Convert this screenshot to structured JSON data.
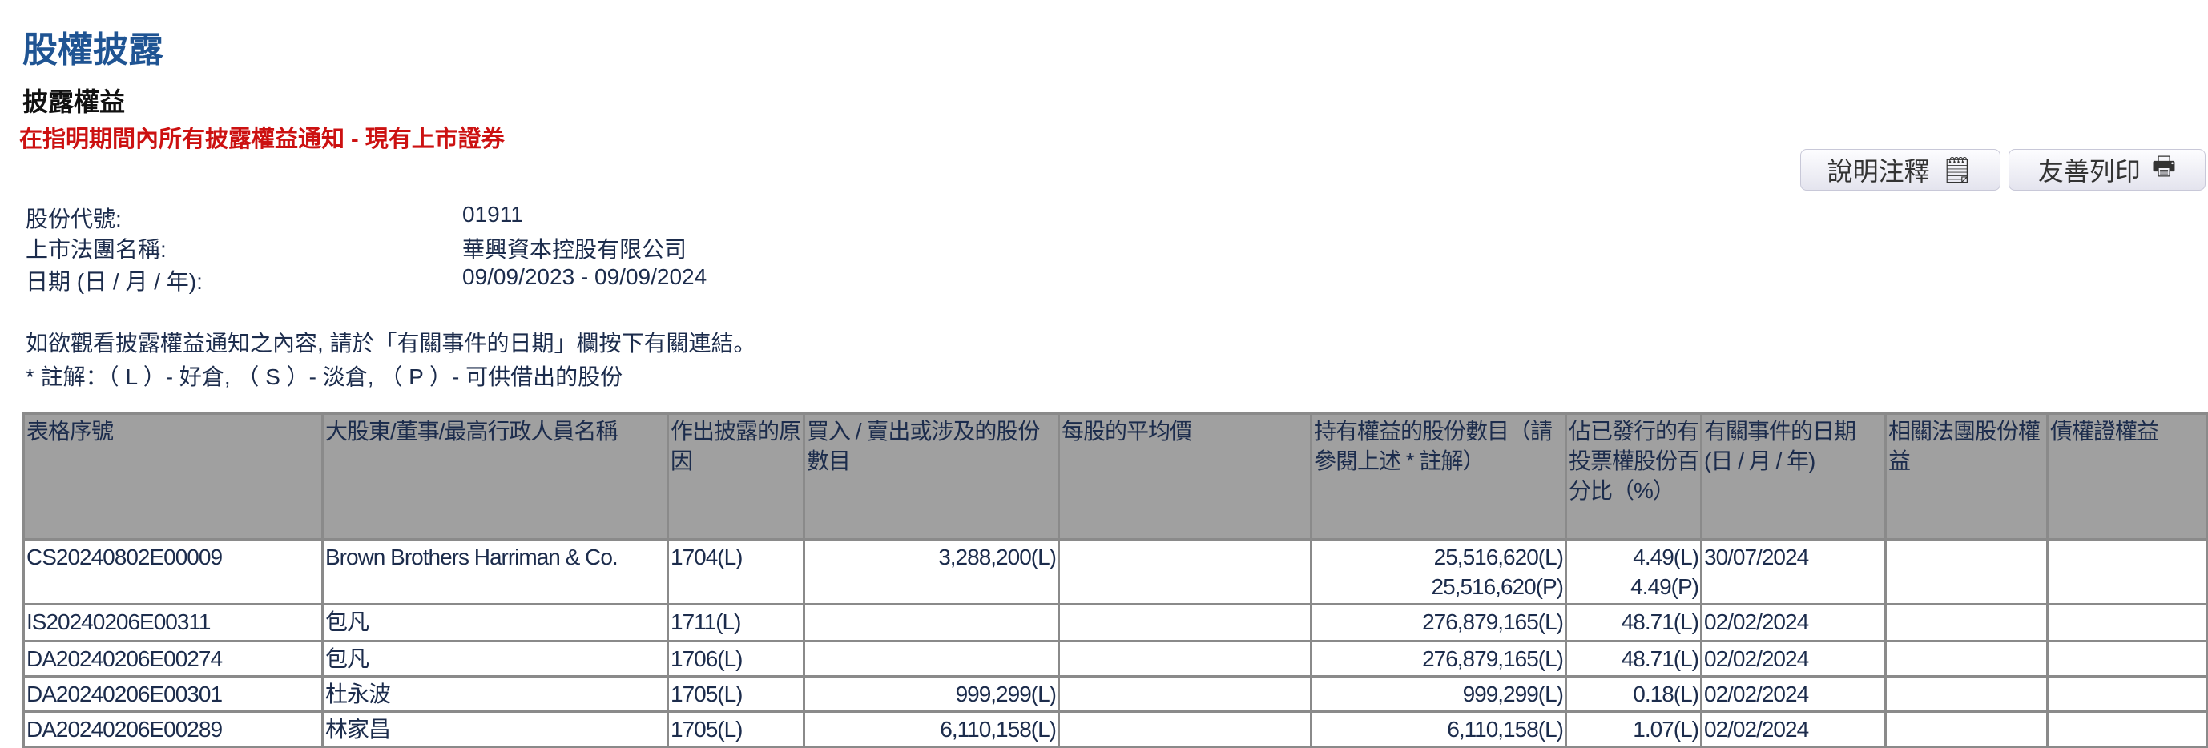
{
  "page_title": "股權披露",
  "section_title": "披露權益",
  "subtitle": "在指明期間內所有披露權益通知 - 現有上市證券",
  "buttons": {
    "notes": "說明注釋",
    "print": "友善列印"
  },
  "info": {
    "stock_code_label": "股份代號:",
    "stock_code": "01911",
    "company_label": "上市法團名稱:",
    "company": "華興資本控股有限公司",
    "date_label": "日期 (日 / 月 / 年):",
    "date_range": "09/09/2023 - 09/09/2024"
  },
  "instructions": "如欲觀看披露權益通知之內容, 請於「有關事件的日期」欄按下有關連結。",
  "legend_note": " * 註解：（ L ）- 好倉, （ S ）- 淡倉, （ P ）- 可供借出的股份",
  "table": {
    "headers": [
      "表格序號",
      "大股東/董事/最高行政人員名稱",
      "作出披露的原因",
      "買入 / 賣出或涉及的股份數目",
      "每股的平均價",
      "持有權益的股份數目（請參閱上述 * 註解）",
      "佔已發行的有投票權股份百分比（%）",
      "有關事件的日期 (日 / 月 / 年)",
      "相關法團股份權益",
      "債權證權益"
    ],
    "rows": [
      {
        "form": "CS20240802E00009",
        "name": "Brown Brothers Harriman & Co.",
        "reason": "1704(L)",
        "shares": "3,288,200(L)",
        "avg": "",
        "held": [
          "25,516,620(L)",
          "25,516,620(P)"
        ],
        "pct": [
          "4.49(L)",
          "4.49(P)"
        ],
        "date": "30/07/2024",
        "assoc": "",
        "deb": ""
      },
      {
        "form": "IS20240206E00311",
        "name": "包凡",
        "reason": "1711(L)",
        "shares": "",
        "avg": "",
        "held": [
          "276,879,165(L)"
        ],
        "pct": [
          "48.71(L)"
        ],
        "date": "02/02/2024",
        "assoc": "",
        "deb": ""
      },
      {
        "form": "DA20240206E00274",
        "name": "包凡",
        "reason": "1706(L)",
        "shares": "",
        "avg": "",
        "held": [
          "276,879,165(L)"
        ],
        "pct": [
          "48.71(L)"
        ],
        "date": "02/02/2024",
        "assoc": "",
        "deb": ""
      },
      {
        "form": "DA20240206E00301",
        "name": "杜永波",
        "reason": "1705(L)",
        "shares": "999,299(L)",
        "avg": "",
        "held": [
          "999,299(L)"
        ],
        "pct": [
          "0.18(L)"
        ],
        "date": "02/02/2024",
        "assoc": "",
        "deb": ""
      },
      {
        "form": "DA20240206E00289",
        "name": "林家昌",
        "reason": "1705(L)",
        "shares": "6,110,158(L)",
        "avg": "",
        "held": [
          "6,110,158(L)"
        ],
        "pct": [
          "1.07(L)"
        ],
        "date": "02/02/2024",
        "assoc": "",
        "deb": ""
      }
    ]
  },
  "icons": {
    "notes": "notepad-icon",
    "print": "printer-icon"
  }
}
